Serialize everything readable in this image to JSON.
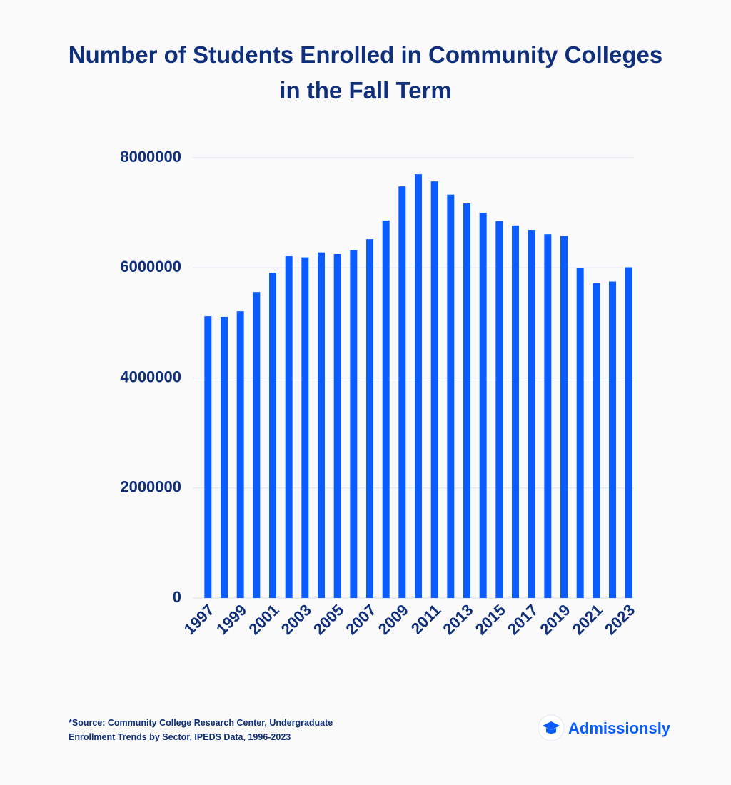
{
  "chart_data": {
    "type": "bar",
    "title": "Number of Students Enrolled in Community Colleges in the Fall Term",
    "categories": [
      "1997",
      null,
      "1999",
      null,
      "2001",
      null,
      "2003",
      null,
      "2005",
      null,
      "2007",
      null,
      "2009",
      null,
      "2011",
      null,
      "2013",
      null,
      "2015",
      null,
      "2017",
      null,
      "2019",
      null,
      "2021",
      null,
      "2023"
    ],
    "values": [
      5120000,
      5110000,
      5210000,
      5560000,
      5910000,
      6210000,
      6190000,
      6280000,
      6250000,
      6320000,
      6520000,
      6860000,
      7480000,
      7700000,
      7570000,
      7330000,
      7170000,
      7000000,
      6850000,
      6770000,
      6690000,
      6610000,
      6580000,
      5990000,
      5720000,
      5750000,
      6010000
    ],
    "color": "#0a5cff",
    "ylim": [
      0,
      8000000
    ],
    "yticks": [
      0,
      2000000,
      4000000,
      6000000,
      8000000
    ],
    "grid": true,
    "source": "*Source: Community College Research Center, Undergraduate Enrollment Trends by Sector, IPEDS Data, 1996-2023",
    "brand": "Admissionsly"
  }
}
